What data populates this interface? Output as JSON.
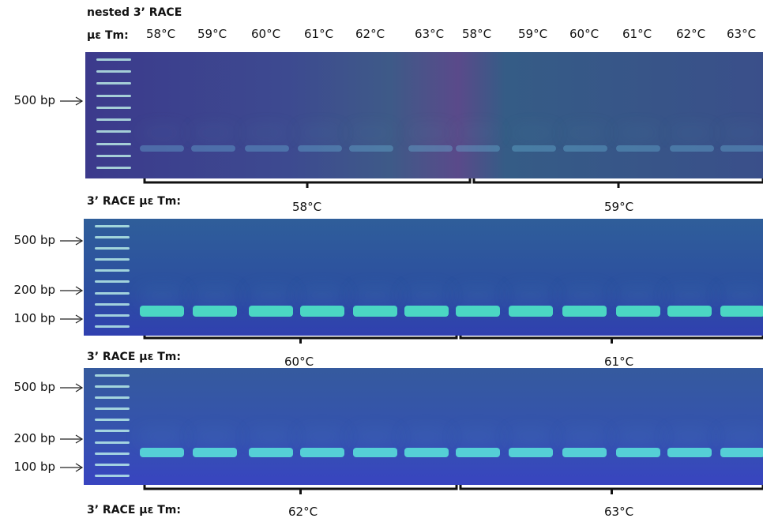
{
  "panels": [
    {
      "title": "nested 3’ RACE",
      "lane_header": "με Tm:",
      "lanes": [
        "58°C",
        "59°C",
        "60°C",
        "61°C",
        "62°C",
        "63°C",
        "58°C",
        "59°C",
        "60°C",
        "61°C",
        "62°C",
        "63°C"
      ],
      "markers": [
        "500 bp"
      ],
      "caption": "3’ RACE με Tm:",
      "groups": [
        "58°C",
        "59°C"
      ]
    },
    {
      "markers": [
        "500 bp",
        "200 bp",
        "100 bp"
      ],
      "caption": "3’ RACE με Tm:",
      "groups": [
        "60°C",
        "61°C"
      ]
    },
    {
      "markers": [
        "500 bp",
        "200 bp",
        "100 bp"
      ],
      "caption": "3’ RACE με Tm:",
      "groups": [
        "62°C",
        "63°C"
      ]
    }
  ]
}
